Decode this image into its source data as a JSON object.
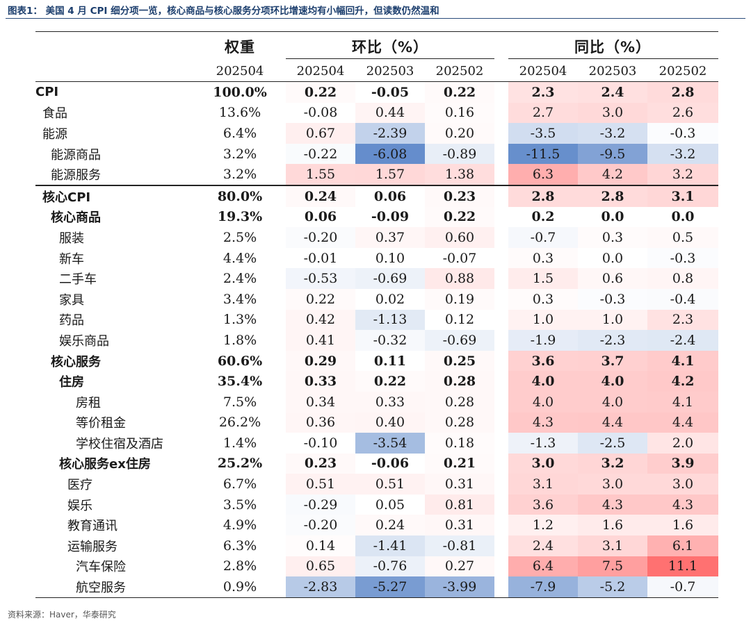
{
  "title": "图表1： 美国 4 月 CPI 细分项一览，核心商品与核心服务分项环比增速均有小幅回升，但读数仍然温和",
  "headers": {
    "weight": "权重",
    "mom": "环比（%）",
    "yoy": "同比（%）",
    "weight_period": "202504",
    "periods": [
      "202504",
      "202503",
      "202502"
    ]
  },
  "rows": [
    {
      "label": "CPI",
      "weight": "100.0%",
      "mom": [
        "0.22",
        "-0.05",
        "0.22"
      ],
      "yoy": [
        "2.3",
        "2.4",
        "2.8"
      ]
    },
    {
      "label": "食品",
      "weight": "13.6%",
      "mom": [
        "-0.08",
        "0.44",
        "0.16"
      ],
      "yoy": [
        "2.7",
        "3.0",
        "2.6"
      ]
    },
    {
      "label": "能源",
      "weight": "6.4%",
      "mom": [
        "0.67",
        "-2.39",
        "0.20"
      ],
      "yoy": [
        "-3.5",
        "-3.2",
        "-0.3"
      ]
    },
    {
      "label": "能源商品",
      "weight": "3.2%",
      "mom": [
        "-0.22",
        "-6.08",
        "-0.89"
      ],
      "yoy": [
        "-11.5",
        "-9.5",
        "-3.2"
      ]
    },
    {
      "label": "能源服务",
      "weight": "3.2%",
      "mom": [
        "1.55",
        "1.57",
        "1.38"
      ],
      "yoy": [
        "6.3",
        "4.2",
        "3.2"
      ]
    },
    {
      "label": "核心CPI",
      "weight": "80.0%",
      "mom": [
        "0.24",
        "0.06",
        "0.23"
      ],
      "yoy": [
        "2.8",
        "2.8",
        "3.1"
      ]
    },
    {
      "label": "核心商品",
      "weight": "19.3%",
      "mom": [
        "0.06",
        "-0.09",
        "0.22"
      ],
      "yoy": [
        "0.2",
        "0.0",
        "0.0"
      ]
    },
    {
      "label": "服装",
      "weight": "2.5%",
      "mom": [
        "-0.20",
        "0.37",
        "0.60"
      ],
      "yoy": [
        "-0.7",
        "0.3",
        "0.5"
      ]
    },
    {
      "label": "新车",
      "weight": "4.4%",
      "mom": [
        "-0.01",
        "0.10",
        "-0.07"
      ],
      "yoy": [
        "0.3",
        "0.0",
        "-0.3"
      ]
    },
    {
      "label": "二手车",
      "weight": "2.4%",
      "mom": [
        "-0.53",
        "-0.69",
        "0.88"
      ],
      "yoy": [
        "1.5",
        "0.6",
        "0.8"
      ]
    },
    {
      "label": "家具",
      "weight": "3.4%",
      "mom": [
        "0.22",
        "0.02",
        "0.19"
      ],
      "yoy": [
        "0.3",
        "-0.3",
        "-0.4"
      ]
    },
    {
      "label": "药品",
      "weight": "1.3%",
      "mom": [
        "0.42",
        "-1.13",
        "0.12"
      ],
      "yoy": [
        "1.0",
        "1.0",
        "2.3"
      ]
    },
    {
      "label": "娱乐商品",
      "weight": "1.8%",
      "mom": [
        "0.41",
        "-0.32",
        "-0.69"
      ],
      "yoy": [
        "-1.9",
        "-2.3",
        "-2.4"
      ]
    },
    {
      "label": "核心服务",
      "weight": "60.6%",
      "mom": [
        "0.29",
        "0.11",
        "0.25"
      ],
      "yoy": [
        "3.6",
        "3.7",
        "4.1"
      ]
    },
    {
      "label": "住房",
      "weight": "35.4%",
      "mom": [
        "0.33",
        "0.22",
        "0.28"
      ],
      "yoy": [
        "4.0",
        "4.0",
        "4.2"
      ]
    },
    {
      "label": "房租",
      "weight": "7.5%",
      "mom": [
        "0.34",
        "0.33",
        "0.28"
      ],
      "yoy": [
        "4.0",
        "4.0",
        "4.1"
      ]
    },
    {
      "label": "等价租金",
      "weight": "26.2%",
      "mom": [
        "0.36",
        "0.40",
        "0.28"
      ],
      "yoy": [
        "4.3",
        "4.4",
        "4.4"
      ]
    },
    {
      "label": "学校住宿及酒店",
      "weight": "1.4%",
      "mom": [
        "-0.10",
        "-3.54",
        "0.18"
      ],
      "yoy": [
        "-1.3",
        "-2.5",
        "2.0"
      ]
    },
    {
      "label": "核心服务ex住房",
      "weight": "25.2%",
      "mom": [
        "0.23",
        "-0.06",
        "0.21"
      ],
      "yoy": [
        "3.0",
        "3.2",
        "3.9"
      ]
    },
    {
      "label": "医疗",
      "weight": "6.7%",
      "mom": [
        "0.51",
        "0.51",
        "0.31"
      ],
      "yoy": [
        "3.1",
        "3.0",
        "3.0"
      ]
    },
    {
      "label": "娱乐",
      "weight": "3.5%",
      "mom": [
        "-0.29",
        "0.05",
        "0.81"
      ],
      "yoy": [
        "3.6",
        "4.3",
        "4.3"
      ]
    },
    {
      "label": "教育通讯",
      "weight": "4.9%",
      "mom": [
        "-0.20",
        "0.24",
        "0.31"
      ],
      "yoy": [
        "1.2",
        "1.6",
        "1.6"
      ]
    },
    {
      "label": "运输服务",
      "weight": "6.3%",
      "mom": [
        "0.14",
        "-1.41",
        "-0.81"
      ],
      "yoy": [
        "2.4",
        "3.1",
        "6.1"
      ]
    },
    {
      "label": "汽车保险",
      "weight": "2.8%",
      "mom": [
        "0.65",
        "-0.76",
        "0.27"
      ],
      "yoy": [
        "6.4",
        "7.5",
        "11.1"
      ]
    },
    {
      "label": "航空服务",
      "weight": "0.9%",
      "mom": [
        "-2.83",
        "-5.27",
        "-3.99"
      ],
      "yoy": [
        "-7.9",
        "-5.2",
        "-0.7"
      ]
    }
  ],
  "colors": {
    "positive": "#f06060",
    "negative": "#5a86c8",
    "title_text": "#1d3f6e"
  },
  "source": "资料来源：Haver，华泰研究"
}
